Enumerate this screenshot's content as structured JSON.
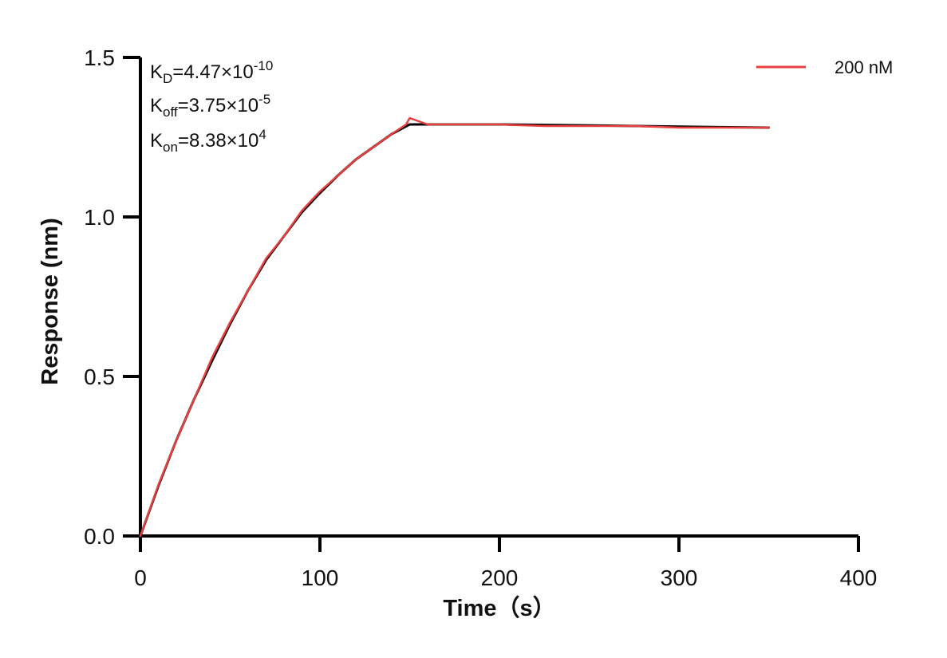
{
  "chart_data": {
    "type": "line",
    "xlabel": "Time（s）",
    "ylabel": "Response (nm)",
    "xlim": [
      0,
      400
    ],
    "ylim": [
      0,
      1.5
    ],
    "x_ticks": [
      "0",
      "100",
      "200",
      "300",
      "400"
    ],
    "y_ticks": [
      "0.0",
      "0.5",
      "1.0",
      "1.5"
    ],
    "grid": false,
    "legend_position": "top-right",
    "annotations": {
      "kd": {
        "label": "K",
        "sub": "D",
        "value": "=4.47×10",
        "exp": "-10"
      },
      "koff": {
        "label": "K",
        "sub": "off",
        "value": "=3.75×10",
        "exp": "-5"
      },
      "kon": {
        "label": "K",
        "sub": "on",
        "value": "=8.38×10",
        "exp": "4"
      }
    },
    "series": [
      {
        "name": "200 nM",
        "color": "#e8403f",
        "x": [
          0,
          10,
          20,
          30,
          40,
          50,
          60,
          70,
          80,
          90,
          100,
          110,
          120,
          130,
          140,
          148,
          150,
          160,
          175,
          200,
          225,
          250,
          275,
          300,
          325,
          350
        ],
        "y": [
          0.0,
          0.16,
          0.3,
          0.43,
          0.56,
          0.67,
          0.77,
          0.87,
          0.94,
          1.02,
          1.08,
          1.13,
          1.18,
          1.22,
          1.26,
          1.29,
          1.31,
          1.29,
          1.29,
          1.29,
          1.285,
          1.285,
          1.285,
          1.28,
          1.28,
          1.28
        ]
      },
      {
        "name": "",
        "color": "#000000",
        "x": [
          0,
          10,
          20,
          30,
          40,
          50,
          60,
          70,
          80,
          90,
          100,
          110,
          120,
          130,
          140,
          150,
          175,
          200,
          250,
          300,
          350
        ],
        "y": [
          0.0,
          0.157,
          0.3,
          0.43,
          0.55,
          0.665,
          0.77,
          0.865,
          0.94,
          1.015,
          1.075,
          1.13,
          1.18,
          1.22,
          1.26,
          1.29,
          1.29,
          1.29,
          1.287,
          1.283,
          1.28
        ]
      }
    ]
  }
}
